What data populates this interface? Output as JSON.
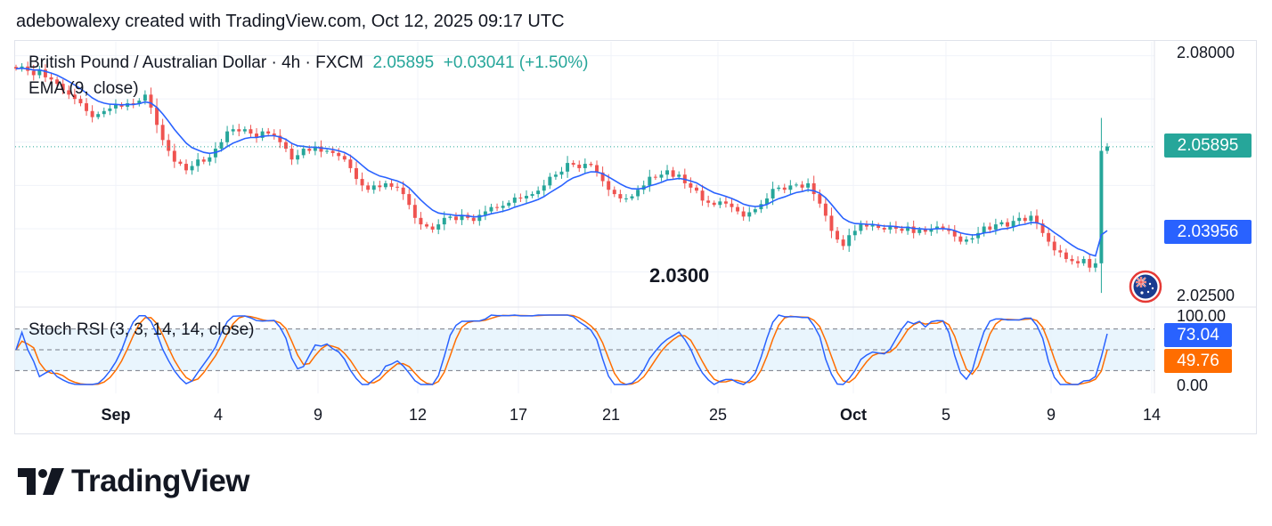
{
  "header": {
    "text": "adebowalexy created with TradingView.com, Oct 12, 2025 09:17 UTC"
  },
  "legend": {
    "symbol": "British Pound / Australian Dollar · 4h · FXCM",
    "last_price": "2.05895",
    "change": "+0.03041 (+1.50%)",
    "ema_label": "EMA (9, close)",
    "stoch_label": "Stoch RSI (3, 3, 14, 14, close)"
  },
  "annotation": {
    "level_text": "2.0300"
  },
  "price_axis": {
    "labels": [
      "2.08000",
      "2.02500"
    ],
    "last_price_tag": "2.05895",
    "ema_tag": "2.03956"
  },
  "stoch_axis": {
    "labels": [
      "100.00",
      "0.00"
    ],
    "k_tag": "73.04",
    "d_tag": "49.76"
  },
  "time_axis": {
    "labels": [
      {
        "text": "Sep",
        "bold": true
      },
      {
        "text": "4",
        "bold": false
      },
      {
        "text": "9",
        "bold": false
      },
      {
        "text": "12",
        "bold": false
      },
      {
        "text": "17",
        "bold": false
      },
      {
        "text": "21",
        "bold": false
      },
      {
        "text": "25",
        "bold": false
      },
      {
        "text": "Oct",
        "bold": true
      },
      {
        "text": "5",
        "bold": false
      },
      {
        "text": "9",
        "bold": false
      },
      {
        "text": "14",
        "bold": false
      }
    ]
  },
  "brand": {
    "logo_text": "TradingView",
    "logo_icon": "tradingview-logo-icon",
    "flag_icon": "australia-flag-icon"
  },
  "colors": {
    "up": "#26a69a",
    "down": "#ef5350",
    "ema": "#2962ff",
    "stoch_k": "#2962ff",
    "stoch_d": "#ff6d00",
    "band_fill": "#e3f2fd"
  },
  "chart_data": {
    "type": "candlestick",
    "title": "British Pound / Australian Dollar · 4h · FXCM",
    "timeframe": "4h",
    "price_range": [
      2.0225,
      2.083
    ],
    "ema_period": 9,
    "last_close": 2.05895,
    "ema_last": 2.03956,
    "closes": [
      2.077,
      2.0775,
      2.0765,
      2.0755,
      2.0768,
      2.075,
      2.0745,
      2.0735,
      2.072,
      2.071,
      2.07,
      2.069,
      2.0672,
      2.0658,
      2.0665,
      2.0672,
      2.0678,
      2.0686,
      2.0682,
      2.069,
      2.0688,
      2.0696,
      2.071,
      2.068,
      2.064,
      2.0605,
      2.058,
      2.0555,
      2.055,
      2.0535,
      2.0545,
      2.056,
      2.0555,
      2.0565,
      2.0585,
      2.06,
      2.0625,
      2.063,
      2.0625,
      2.063,
      2.062,
      2.061,
      2.0625,
      2.062,
      2.0615,
      2.06,
      2.0585,
      2.056,
      2.057,
      2.0585,
      2.058,
      2.059,
      2.0578,
      2.058,
      2.0575,
      2.0568,
      2.056,
      2.054,
      2.0515,
      2.05,
      2.049,
      2.05,
      2.0496,
      2.0505,
      2.0497,
      2.0495,
      2.048,
      2.0455,
      2.0425,
      2.041,
      2.0405,
      2.0398,
      2.041,
      2.0425,
      2.0428,
      2.042,
      2.0432,
      2.0425,
      2.0418,
      2.0432,
      2.044,
      2.045,
      2.0448,
      2.0453,
      2.046,
      2.0472,
      2.047,
      2.0476,
      2.048,
      2.0488,
      2.05,
      2.052,
      2.0525,
      2.0532,
      2.0552,
      2.0548,
      2.054,
      2.055,
      2.0547,
      2.053,
      2.051,
      2.049,
      2.048,
      2.047,
      2.047,
      2.0475,
      2.049,
      2.05,
      2.052,
      2.0518,
      2.0525,
      2.0535,
      2.052,
      2.0525,
      2.0505,
      2.0495,
      2.0488,
      2.0465,
      2.046,
      2.0455,
      2.0463,
      2.0458,
      2.045,
      2.044,
      2.0428,
      2.0438,
      2.0445,
      2.0457,
      2.047,
      2.0492,
      2.0495,
      2.049,
      2.05,
      2.0502,
      2.0495,
      2.0505,
      2.048,
      2.0458,
      2.043,
      2.0395,
      2.0375,
      2.036,
      2.0385,
      2.0395,
      2.041,
      2.0405,
      2.0408,
      2.0402,
      2.0398,
      2.0405,
      2.04,
      2.0395,
      2.0405,
      2.039,
      2.0398,
      2.0393,
      2.04,
      2.0405,
      2.04,
      2.0395,
      2.0382,
      2.037,
      2.0375,
      2.0378,
      2.039,
      2.0405,
      2.0398,
      2.041,
      2.0415,
      2.0405,
      2.0418,
      2.0425,
      2.0418,
      2.043,
      2.0412,
      2.039,
      2.037,
      2.035,
      2.0345,
      2.033,
      2.0325,
      2.032,
      2.033,
      2.031,
      2.032,
      2.058,
      2.059
    ],
    "stoch_rsi": {
      "k_period": 3,
      "d_period": 3,
      "rsi_period": 14,
      "stoch_period": 14,
      "range": [
        0,
        100
      ],
      "bands": [
        80,
        50,
        20
      ],
      "k_last": 73.04,
      "d_last": 49.76
    }
  }
}
